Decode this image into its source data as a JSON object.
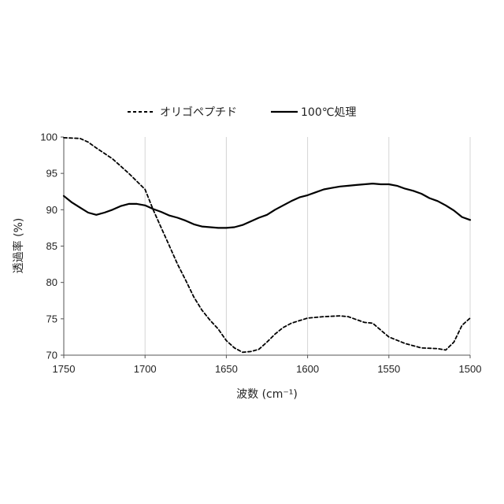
{
  "chart_data": {
    "type": "line",
    "xlabel": "波数 (cm⁻¹)",
    "ylabel": "透過率 (%)",
    "xlim": [
      1750,
      1500
    ],
    "x_reversed": true,
    "ylim": [
      70,
      100
    ],
    "x_ticks": [
      1750,
      1700,
      1650,
      1600,
      1550,
      1500
    ],
    "y_ticks": [
      70,
      75,
      80,
      85,
      90,
      95,
      100
    ],
    "grid": "vertical",
    "legend_position": "top-center",
    "series": [
      {
        "name": "オリゴペプチド",
        "style": "dashed",
        "color": "#000000",
        "x": [
          1750,
          1740,
          1735,
          1730,
          1720,
          1710,
          1700,
          1695,
          1690,
          1685,
          1680,
          1675,
          1670,
          1665,
          1660,
          1655,
          1650,
          1645,
          1640,
          1635,
          1630,
          1625,
          1620,
          1615,
          1610,
          1600,
          1590,
          1580,
          1575,
          1570,
          1565,
          1560,
          1550,
          1540,
          1530,
          1520,
          1515,
          1510,
          1505,
          1500
        ],
        "y": [
          99.9,
          99.8,
          99.3,
          98.5,
          97.0,
          95.0,
          92.8,
          90.0,
          87.5,
          85.0,
          82.5,
          80.3,
          78.0,
          76.2,
          74.8,
          73.6,
          72.0,
          71.0,
          70.4,
          70.5,
          70.8,
          71.8,
          72.9,
          73.8,
          74.4,
          75.1,
          75.3,
          75.4,
          75.3,
          74.9,
          74.5,
          74.4,
          72.5,
          71.6,
          71.0,
          70.9,
          70.7,
          71.8,
          74.1,
          75.1
        ]
      },
      {
        "name": "100℃処理",
        "style": "solid",
        "color": "#000000",
        "x": [
          1750,
          1745,
          1740,
          1735,
          1730,
          1725,
          1720,
          1715,
          1710,
          1705,
          1700,
          1695,
          1690,
          1685,
          1680,
          1675,
          1670,
          1665,
          1660,
          1655,
          1650,
          1645,
          1640,
          1635,
          1630,
          1625,
          1620,
          1615,
          1610,
          1605,
          1600,
          1595,
          1590,
          1585,
          1580,
          1575,
          1570,
          1565,
          1560,
          1555,
          1550,
          1545,
          1540,
          1535,
          1530,
          1525,
          1520,
          1515,
          1510,
          1505,
          1500
        ],
        "y": [
          91.9,
          91.0,
          90.3,
          89.6,
          89.3,
          89.6,
          90.0,
          90.5,
          90.8,
          90.8,
          90.6,
          90.1,
          89.7,
          89.2,
          88.9,
          88.5,
          88.0,
          87.7,
          87.6,
          87.5,
          87.5,
          87.6,
          87.9,
          88.4,
          88.9,
          89.3,
          90.0,
          90.6,
          91.2,
          91.7,
          92.0,
          92.4,
          92.8,
          93.0,
          93.2,
          93.3,
          93.4,
          93.5,
          93.6,
          93.5,
          93.5,
          93.3,
          92.9,
          92.6,
          92.2,
          91.6,
          91.2,
          90.6,
          89.9,
          89.0,
          88.6
        ]
      }
    ]
  }
}
